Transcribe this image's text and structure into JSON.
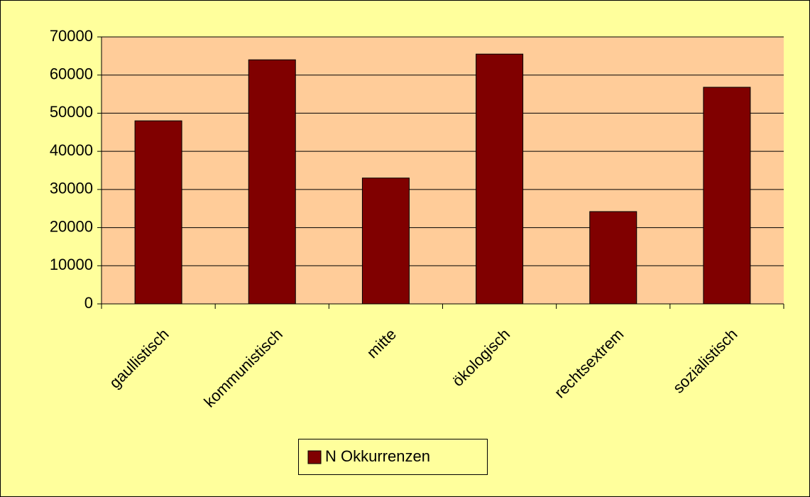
{
  "chart_data": {
    "type": "bar",
    "categories": [
      "gaullistisch",
      "kommunistisch",
      "mitte",
      "ökologisch",
      "rechtsextrem",
      "sozialistisch"
    ],
    "series": [
      {
        "name": "N Okkurrenzen",
        "color": "#800000",
        "values": [
          48000,
          64000,
          33000,
          65500,
          24200,
          56800
        ]
      }
    ],
    "ylim": [
      0,
      70000
    ],
    "yticks": [
      0,
      10000,
      20000,
      30000,
      40000,
      50000,
      60000,
      70000
    ],
    "grid": true,
    "legend": "bottom"
  }
}
